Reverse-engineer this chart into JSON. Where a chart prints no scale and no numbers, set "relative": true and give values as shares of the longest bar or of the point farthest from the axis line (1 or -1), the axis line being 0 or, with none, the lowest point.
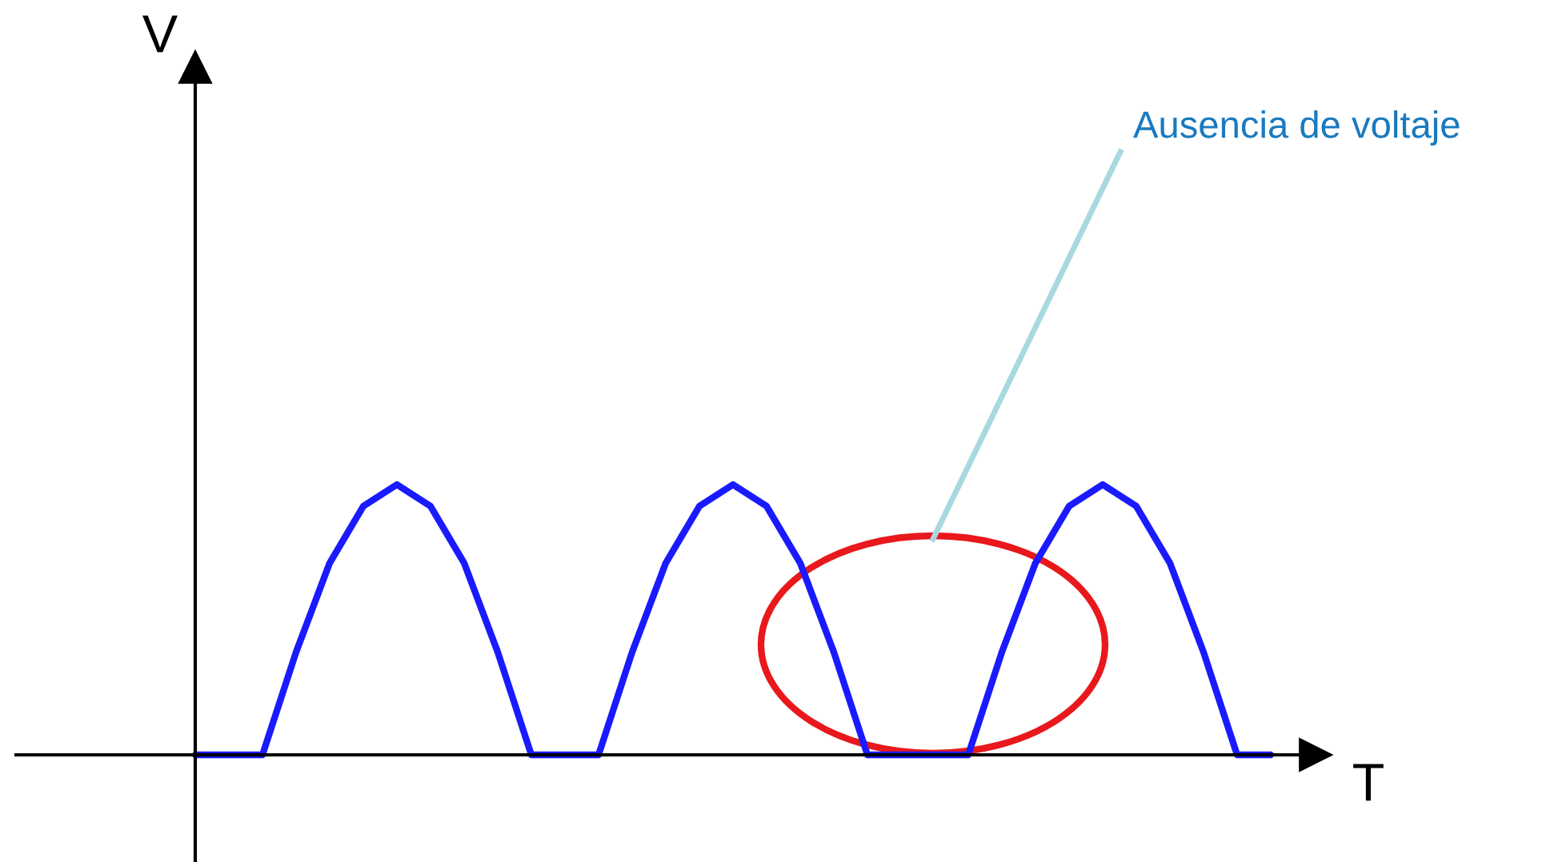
{
  "chart_data": {
    "type": "line",
    "relative": true,
    "categories": [
      null,
      null,
      null,
      null,
      null,
      null,
      null,
      null,
      null,
      null,
      null,
      null,
      null,
      null,
      null,
      null,
      null,
      null,
      null,
      null,
      null,
      null,
      null,
      null,
      null,
      null,
      null,
      null,
      null,
      null,
      null,
      null,
      null
    ],
    "series": [
      {
        "color": "#1a1aff",
        "values": [
          0,
          0,
          0,
          0.38,
          0.71,
          0.92,
          1,
          0.92,
          0.71,
          0.38,
          0,
          0,
          0,
          0.38,
          0.71,
          0.92,
          1,
          0.92,
          0.71,
          0.38,
          0,
          0,
          0,
          0,
          0.38,
          0.71,
          0.92,
          1,
          0.92,
          0.71,
          0.38,
          0,
          0
        ]
      }
    ],
    "annotations": [
      "V",
      "T",
      "Ausencia de voltaje"
    ],
    "marker": "none",
    "line_style": "solid"
  }
}
